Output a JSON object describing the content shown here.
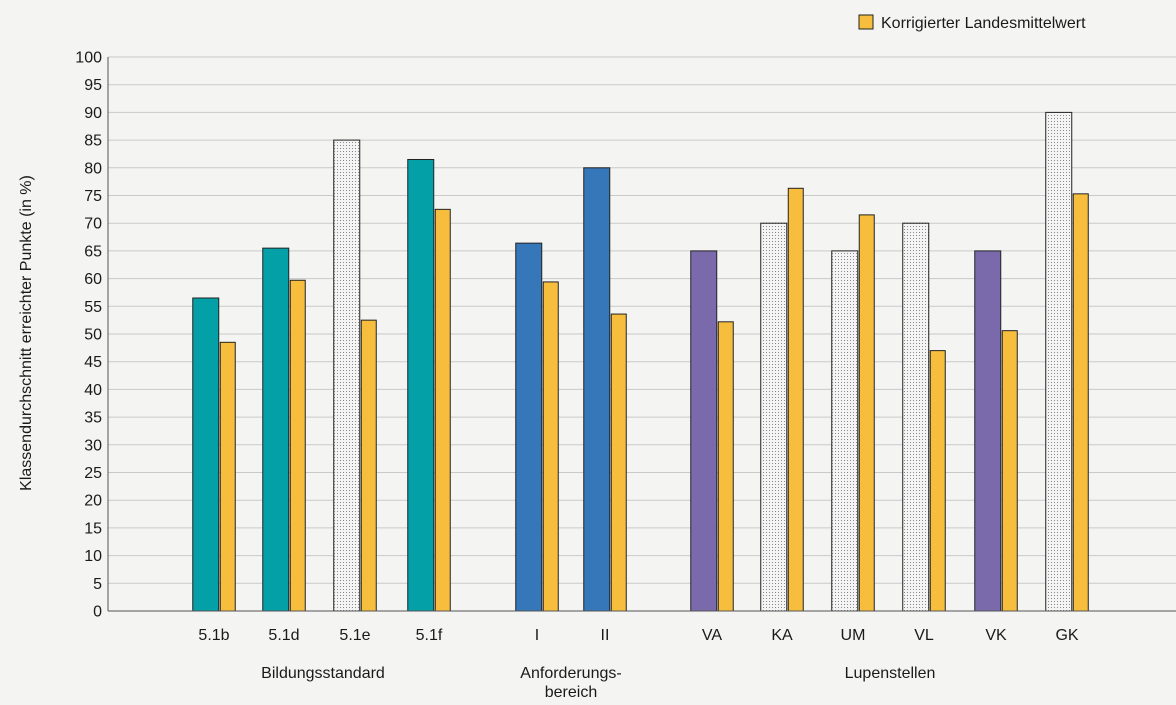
{
  "chart_data": {
    "type": "bar",
    "title": "",
    "ylabel": "Klassendurchschnitt erreichter Punkte (in %)",
    "xlabel": "",
    "ylim": [
      0,
      100
    ],
    "yticks": [
      0,
      5,
      10,
      15,
      20,
      25,
      30,
      35,
      40,
      45,
      50,
      55,
      60,
      65,
      70,
      75,
      80,
      85,
      90,
      95,
      100
    ],
    "grid": true,
    "legend": {
      "placement": "top-right",
      "entries": [
        {
          "label": "Korrigierter Landesmittelwert",
          "color": "#f7be3e"
        }
      ]
    },
    "colors": {
      "teal": "#04a0a8",
      "blue": "#3577b9",
      "purple": "#7a6aac",
      "dotted": "#f2f2f2",
      "landesmittelwert": "#f7be3e"
    },
    "groups": [
      {
        "label": "Bildungsstandard",
        "categories": [
          {
            "label": "5.1b",
            "class_value": 56.5,
            "class_style": "teal",
            "landesmittelwert": 48.5
          },
          {
            "label": "5.1d",
            "class_value": 65.5,
            "class_style": "teal",
            "landesmittelwert": 59.7
          },
          {
            "label": "5.1e",
            "class_value": 85.0,
            "class_style": "dotted",
            "landesmittelwert": 52.5
          },
          {
            "label": "5.1f",
            "class_value": 81.5,
            "class_style": "teal",
            "landesmittelwert": 72.5
          }
        ]
      },
      {
        "label": "Anforderungs- bereich",
        "label_lines": [
          "Anforderungs-",
          "bereich"
        ],
        "categories": [
          {
            "label": "I",
            "class_value": 66.4,
            "class_style": "blue",
            "landesmittelwert": 59.4
          },
          {
            "label": "II",
            "class_value": 80.0,
            "class_style": "blue",
            "landesmittelwert": 53.6
          }
        ]
      },
      {
        "label": "Lupenstellen",
        "categories": [
          {
            "label": "VA",
            "class_value": 65.0,
            "class_style": "purple",
            "landesmittelwert": 52.2
          },
          {
            "label": "KA",
            "class_value": 70.0,
            "class_style": "dotted",
            "landesmittelwert": 76.3
          },
          {
            "label": "UM",
            "class_value": 65.0,
            "class_style": "dotted",
            "landesmittelwert": 71.5
          },
          {
            "label": "VL",
            "class_value": 70.0,
            "class_style": "dotted",
            "landesmittelwert": 47.0
          },
          {
            "label": "VK",
            "class_value": 65.0,
            "class_style": "purple",
            "landesmittelwert": 50.6
          },
          {
            "label": "GK",
            "class_value": 90.0,
            "class_style": "dotted",
            "landesmittelwert": 75.3
          }
        ]
      }
    ]
  }
}
